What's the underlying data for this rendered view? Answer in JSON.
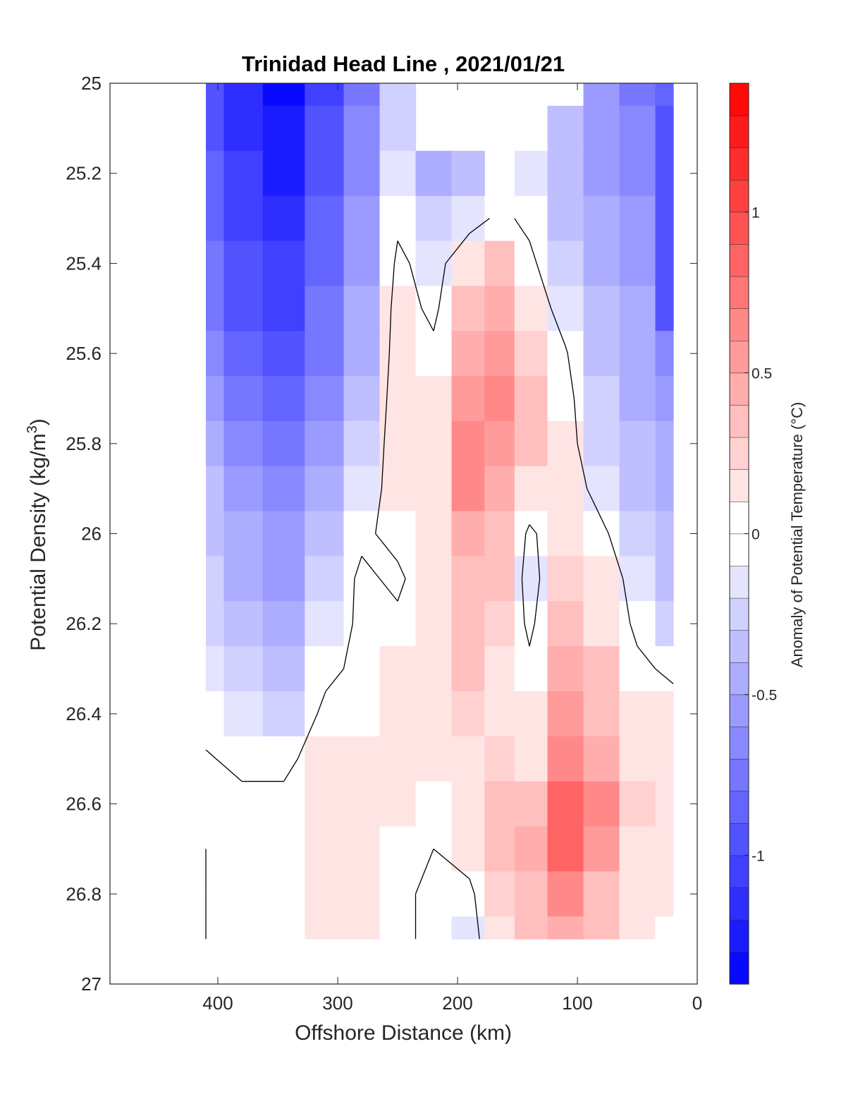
{
  "chart_data": {
    "type": "heatmap",
    "title": "Trinidad Head Line , 2021/01/21",
    "xlabel": "Offshore Distance (km)",
    "ylabel_main": "Potential Density (kg/m",
    "ylabel_sup": "3",
    "ylabel_end": ")",
    "xlim": [
      490,
      0
    ],
    "ylim": [
      25,
      27
    ],
    "xticks": [
      400,
      300,
      200,
      100,
      0
    ],
    "yticks": [
      25,
      25.2,
      25.4,
      25.6,
      25.8,
      26,
      26.2,
      26.4,
      26.6,
      26.8,
      27
    ],
    "x_reversed": true,
    "y_reversed": true,
    "colorbar": {
      "label": "Anomaly of Potential Temperature (°C)",
      "range": [
        -1.4,
        1.4
      ],
      "step": 0.1,
      "ticks": [
        -1,
        -0.5,
        0,
        0.5,
        1
      ],
      "tick_labels": [
        "-1",
        "-0.5",
        "0",
        "0.5",
        "1"
      ],
      "colors": {
        "negative": "#0000ff",
        "zero": "#ffffff",
        "positive": "#ff0000"
      }
    },
    "contour_levels": [
      0
    ],
    "x": [
      410,
      380,
      345,
      310,
      280,
      250,
      220,
      190,
      165,
      140,
      110,
      80,
      50,
      20
    ],
    "y": [
      25.0,
      25.1,
      25.2,
      25.3,
      25.4,
      25.5,
      25.6,
      25.7,
      25.8,
      25.9,
      26.0,
      26.1,
      26.2,
      26.3,
      26.4,
      26.5,
      26.6,
      26.7,
      26.8,
      26.9
    ],
    "z": [
      [
        -0.9,
        -1.15,
        -1.3,
        -1.0,
        -0.7,
        -0.25,
        null,
        null,
        null,
        null,
        null,
        -0.55,
        -0.7,
        -0.85
      ],
      [
        -0.9,
        -1.1,
        -1.25,
        -0.95,
        -0.65,
        -0.2,
        null,
        null,
        null,
        null,
        -0.3,
        -0.55,
        -0.65,
        -0.9
      ],
      [
        -0.85,
        -1.05,
        -1.2,
        -0.9,
        -0.6,
        -0.15,
        -0.45,
        -0.35,
        null,
        -0.15,
        -0.35,
        -0.5,
        -0.6,
        -0.95
      ],
      [
        -0.8,
        -1.0,
        -1.15,
        -0.85,
        -0.55,
        -0.05,
        -0.25,
        -0.1,
        0.05,
        -0.05,
        -0.3,
        -0.45,
        -0.55,
        -0.95
      ],
      [
        -0.75,
        -0.95,
        -1.05,
        -0.8,
        -0.5,
        0.05,
        -0.1,
        0.2,
        0.3,
        0.05,
        -0.2,
        -0.4,
        -0.5,
        -0.9
      ],
      [
        -0.7,
        -0.9,
        -1.0,
        -0.75,
        -0.45,
        0.1,
        -0.05,
        0.3,
        0.45,
        0.15,
        -0.1,
        -0.35,
        -0.45,
        -0.9
      ],
      [
        -0.6,
        -0.8,
        -0.9,
        -0.7,
        -0.4,
        0.12,
        0.05,
        0.45,
        0.55,
        0.25,
        0.02,
        -0.3,
        -0.45,
        -0.6
      ],
      [
        -0.5,
        -0.7,
        -0.8,
        -0.6,
        -0.35,
        0.15,
        0.1,
        0.55,
        0.6,
        0.3,
        0.08,
        -0.25,
        -0.4,
        -0.5
      ],
      [
        -0.4,
        -0.6,
        -0.7,
        -0.5,
        -0.25,
        0.15,
        0.15,
        0.65,
        0.55,
        0.3,
        0.1,
        -0.2,
        -0.35,
        -0.45
      ],
      [
        -0.35,
        -0.5,
        -0.6,
        -0.4,
        -0.15,
        0.12,
        0.15,
        0.6,
        0.45,
        0.2,
        0.15,
        -0.1,
        -0.3,
        -0.4
      ],
      [
        -0.3,
        -0.45,
        -0.55,
        -0.3,
        -0.05,
        0.08,
        0.18,
        0.5,
        0.35,
        -0.05,
        0.2,
        0.05,
        -0.2,
        -0.35
      ],
      [
        -0.25,
        -0.4,
        -0.5,
        -0.2,
        0.05,
        -0.05,
        0.18,
        0.4,
        0.3,
        -0.1,
        0.25,
        0.15,
        -0.1,
        -0.3
      ],
      [
        -0.2,
        -0.35,
        -0.45,
        -0.15,
        0.05,
        0.05,
        0.15,
        0.35,
        0.25,
        -0.05,
        0.3,
        0.2,
        -0.05,
        -0.2
      ],
      [
        -0.15,
        -0.25,
        -0.35,
        -0.05,
        0.05,
        0.1,
        0.12,
        0.3,
        0.2,
        0.05,
        0.45,
        0.3,
        0.05,
        -0.05
      ],
      [
        -0.08,
        -0.15,
        -0.2,
        0.05,
        0.08,
        0.12,
        0.12,
        0.25,
        0.2,
        0.1,
        0.55,
        0.35,
        0.15,
        0.1
      ],
      [
        0.02,
        -0.05,
        -0.05,
        0.1,
        0.12,
        0.12,
        0.1,
        0.2,
        0.25,
        0.2,
        0.7,
        0.5,
        0.2,
        0.15
      ],
      [
        0.02,
        0.05,
        0.05,
        0.15,
        0.15,
        0.1,
        0.05,
        0.15,
        0.3,
        0.35,
        0.85,
        0.6,
        0.25,
        0.1
      ],
      [
        0.0,
        0.05,
        0.08,
        0.15,
        0.15,
        0.08,
        0.0,
        0.1,
        0.3,
        0.45,
        0.9,
        0.55,
        0.2,
        0.1
      ],
      [
        0.0,
        0.02,
        0.05,
        0.12,
        0.12,
        0.05,
        -0.05,
        -0.05,
        0.25,
        0.4,
        0.65,
        0.4,
        0.15,
        0.1
      ],
      [
        0.0,
        0.02,
        0.05,
        0.1,
        0.12,
        0.05,
        -0.05,
        -0.1,
        0.2,
        0.35,
        0.5,
        0.3,
        0.1,
        0.08
      ]
    ]
  }
}
